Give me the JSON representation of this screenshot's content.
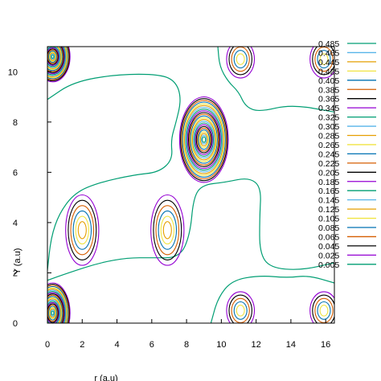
{
  "chart_data": {
    "type": "contour",
    "xlabel": "r (a.u)",
    "ylabel": "Y (a.u)",
    "xlim": [
      0,
      16.5
    ],
    "ylim": [
      0,
      11
    ],
    "xticks": [
      "0",
      "2",
      "4",
      "6",
      "8",
      "10",
      "12",
      "14",
      "16"
    ],
    "yticks": [
      "0",
      "2",
      "4",
      "6",
      "8",
      "10"
    ],
    "legend_position": "right",
    "levels": [
      {
        "value": "0.485",
        "color": "#009e73"
      },
      {
        "value": "0.465",
        "color": "#56b4e9"
      },
      {
        "value": "0.445",
        "color": "#e69f00"
      },
      {
        "value": "0.425",
        "color": "#f0e442"
      },
      {
        "value": "0.405",
        "color": "#0072b2"
      },
      {
        "value": "0.385",
        "color": "#d55e00"
      },
      {
        "value": "0.365",
        "color": "#000000"
      },
      {
        "value": "0.345",
        "color": "#9400d3"
      },
      {
        "value": "0.325",
        "color": "#009e73"
      },
      {
        "value": "0.305",
        "color": "#56b4e9"
      },
      {
        "value": "0.285",
        "color": "#e69f00"
      },
      {
        "value": "0.265",
        "color": "#f0e442"
      },
      {
        "value": "0.245",
        "color": "#0072b2"
      },
      {
        "value": "0.225",
        "color": "#d55e00"
      },
      {
        "value": "0.205",
        "color": "#000000"
      },
      {
        "value": "0.185",
        "color": "#9400d3"
      },
      {
        "value": "0.165",
        "color": "#009e73"
      },
      {
        "value": "0.145",
        "color": "#56b4e9"
      },
      {
        "value": "0.125",
        "color": "#e69f00"
      },
      {
        "value": "0.105",
        "color": "#f0e442"
      },
      {
        "value": "0.085",
        "color": "#0072b2"
      },
      {
        "value": "0.065",
        "color": "#d55e00"
      },
      {
        "value": "0.045",
        "color": "#000000"
      },
      {
        "value": "0.025",
        "color": "#9400d3"
      },
      {
        "value": "0.005",
        "color": "#009e73"
      }
    ],
    "peaks": [
      {
        "x": 0.3,
        "y": 10.6,
        "rx": 1.0,
        "ry": 1.0,
        "rings": 24
      },
      {
        "x": 0.3,
        "y": 0.4,
        "rx": 1.0,
        "ry": 1.2,
        "rings": 24
      },
      {
        "x": 9.0,
        "y": 7.3,
        "rx": 1.4,
        "ry": 1.7,
        "rings": 24
      },
      {
        "x": 2.0,
        "y": 3.7,
        "rx": 0.95,
        "ry": 1.4,
        "rings": 6
      },
      {
        "x": 6.9,
        "y": 3.7,
        "rx": 0.95,
        "ry": 1.4,
        "rings": 6
      },
      {
        "x": 11.1,
        "y": 10.5,
        "rx": 0.8,
        "ry": 0.75,
        "rings": 5
      },
      {
        "x": 15.9,
        "y": 10.5,
        "rx": 0.8,
        "ry": 0.75,
        "rings": 5
      },
      {
        "x": 11.1,
        "y": 0.5,
        "rx": 0.8,
        "ry": 0.75,
        "rings": 5
      },
      {
        "x": 15.9,
        "y": 0.5,
        "rx": 0.8,
        "ry": 0.75,
        "rings": 5
      }
    ],
    "outer_contour": {
      "level": "0.005",
      "upper": [
        [
          0,
          8.9
        ],
        [
          1.5,
          9.6
        ],
        [
          4.0,
          9.9
        ],
        [
          6.5,
          9.9
        ],
        [
          7.4,
          9.6
        ],
        [
          7.7,
          8.9
        ],
        [
          7.4,
          8.0
        ],
        [
          7.1,
          7.3
        ],
        [
          7.2,
          6.5
        ],
        [
          6.4,
          6.0
        ],
        [
          5.0,
          5.9
        ],
        [
          3.0,
          5.6
        ],
        [
          1.6,
          5.2
        ],
        [
          0.7,
          4.4
        ],
        [
          0.2,
          3.4
        ],
        [
          0,
          2.1
        ]
      ],
      "upper_right": [
        [
          9.8,
          11
        ],
        [
          9.9,
          10.2
        ],
        [
          10.4,
          9.6
        ],
        [
          11.0,
          9.2
        ],
        [
          11.4,
          8.6
        ],
        [
          12.2,
          8.4
        ],
        [
          14.0,
          8.7
        ],
        [
          16.5,
          8.4
        ]
      ],
      "lower": [
        [
          0,
          1.7
        ],
        [
          1.2,
          2.0
        ],
        [
          3.0,
          2.4
        ],
        [
          4.6,
          2.6
        ],
        [
          6.0,
          2.6
        ],
        [
          7.6,
          2.6
        ],
        [
          8.2,
          3.5
        ],
        [
          8.4,
          5.0
        ],
        [
          8.9,
          5.5
        ],
        [
          10.2,
          5.6
        ],
        [
          11.6,
          5.8
        ],
        [
          12.3,
          5.4
        ],
        [
          12.2,
          4.2
        ],
        [
          12.2,
          2.8
        ],
        [
          12.8,
          2.2
        ],
        [
          14.6,
          2.1
        ],
        [
          16.5,
          2.4
        ]
      ],
      "lower_right": [
        [
          9.4,
          0
        ],
        [
          9.8,
          1.0
        ],
        [
          10.6,
          1.7
        ],
        [
          12.2,
          1.9
        ],
        [
          13.8,
          1.8
        ],
        [
          15.0,
          1.9
        ],
        [
          16.5,
          1.6
        ]
      ]
    }
  }
}
